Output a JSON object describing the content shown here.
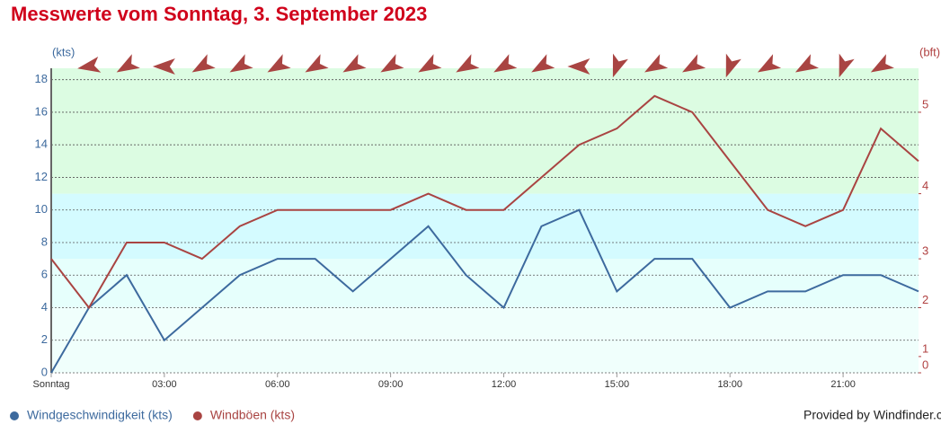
{
  "chart_data": {
    "type": "line",
    "title": "Messwerte vom Sonntag, 3. September 2023",
    "y_label": "(kts)",
    "y2_label": "(bft)",
    "x": [
      0,
      1,
      2,
      3,
      4,
      5,
      6,
      7,
      8,
      9,
      10,
      11,
      12,
      13,
      14,
      15,
      16,
      17,
      18,
      19,
      20,
      21,
      22,
      23
    ],
    "xlim": [
      0,
      23
    ],
    "xticks": [
      {
        "value": 0,
        "label": "Sonntag"
      },
      {
        "value": 3,
        "label": "03:00"
      },
      {
        "value": 6,
        "label": "06:00"
      },
      {
        "value": 9,
        "label": "09:00"
      },
      {
        "value": 12,
        "label": "12:00"
      },
      {
        "value": 15,
        "label": "15:00"
      },
      {
        "value": 18,
        "label": "18:00"
      },
      {
        "value": 21,
        "label": "21:00"
      }
    ],
    "ylim": [
      0,
      18.7
    ],
    "yticks": [
      0,
      2,
      4,
      6,
      8,
      10,
      12,
      14,
      16,
      18
    ],
    "y2lim": [
      0,
      18.7
    ],
    "y2ticks": [
      0,
      1,
      {
        "value": 4,
        "label": "2"
      },
      {
        "value": 7,
        "label": "3"
      },
      {
        "value": 11,
        "label": "4"
      },
      {
        "value": 16,
        "label": "5"
      }
    ],
    "grid": true,
    "series": [
      {
        "name": "Windgeschwindigkeit (kts)",
        "color": "#3d6a9e",
        "values": [
          0,
          4,
          6,
          2,
          4,
          6,
          7,
          7,
          5,
          7,
          9,
          6,
          4,
          9,
          10,
          5,
          7,
          7,
          4,
          5,
          5,
          6,
          6,
          5
        ]
      },
      {
        "name": "Windböen (kts)",
        "color": "#a94442",
        "values": [
          7,
          4,
          8,
          8,
          7,
          9,
          10,
          10,
          10,
          10,
          11,
          10,
          10,
          12,
          14,
          15,
          17,
          16,
          13,
          10,
          9,
          10,
          15,
          13
        ]
      }
    ],
    "wind_direction": [
      null,
      80,
      60,
      90,
      60,
      60,
      60,
      60,
      60,
      60,
      60,
      60,
      60,
      60,
      90,
      20,
      60,
      60,
      20,
      60,
      60,
      20,
      60,
      null
    ],
    "credit": "Provided by Windfinder.com"
  }
}
